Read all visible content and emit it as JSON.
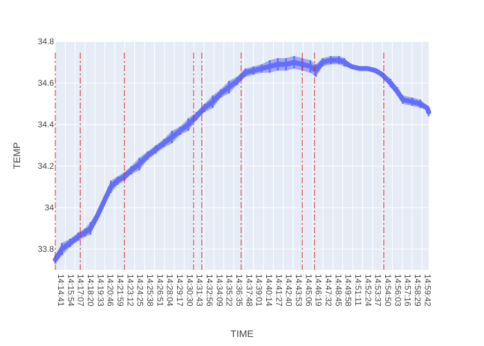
{
  "chart_data": {
    "type": "line",
    "title": "",
    "xlabel": "TIME",
    "ylabel": "TEMP",
    "ylim": [
      33.7,
      34.8
    ],
    "yticks": [
      {
        "value": 33.8,
        "label": "33.8"
      },
      {
        "value": 34.0,
        "label": "34"
      },
      {
        "value": 34.2,
        "label": "34.2"
      },
      {
        "value": 34.4,
        "label": "34.4"
      },
      {
        "value": 34.6,
        "label": "34.6"
      },
      {
        "value": 34.8,
        "label": "34.8"
      }
    ],
    "xlim": [
      "14:14:41",
      "15:00:31"
    ],
    "xticks": [
      "14:14:41",
      "14:15:54",
      "14:17:07",
      "14:18:20",
      "14:19:33",
      "14:20:46",
      "14:21:59",
      "14:23:12",
      "14:24:25",
      "14:25:38",
      "14:26:51",
      "14:28:04",
      "14:29:17",
      "14:30:30",
      "14:31:43",
      "14:32:56",
      "14:34:09",
      "14:35:22",
      "14:36:35",
      "14:37:48",
      "14:39:01",
      "14:40:14",
      "14:41:27",
      "14:42:40",
      "14:43:53",
      "14:45:06",
      "14:46:19",
      "14:47:32",
      "14:48:45",
      "14:49:58",
      "14:51:11",
      "14:52:24",
      "14:53:37",
      "14:54:50",
      "14:56:03",
      "14:57:16",
      "14:58:29",
      "14:59:42"
    ],
    "grid": true,
    "series": [
      {
        "name": "",
        "color": "#636efa",
        "x": [
          "14:14:41",
          "14:15:30",
          "14:16:30",
          "14:17:30",
          "14:18:20",
          "14:19:00",
          "14:19:50",
          "14:20:40",
          "14:21:30",
          "14:22:20",
          "14:23:10",
          "14:24:00",
          "14:25:00",
          "14:26:00",
          "14:27:00",
          "14:28:00",
          "14:29:00",
          "14:30:00",
          "14:31:00",
          "14:32:00",
          "14:33:00",
          "14:34:00",
          "14:35:00",
          "14:36:00",
          "14:37:00",
          "14:38:00",
          "14:39:00",
          "14:40:00",
          "14:41:00",
          "14:42:00",
          "14:43:00",
          "14:44:00",
          "14:45:00",
          "14:46:00",
          "14:46:40",
          "14:47:30",
          "14:48:30",
          "14:49:30",
          "14:50:10",
          "14:51:00",
          "14:52:00",
          "14:53:00",
          "14:54:00",
          "14:54:50",
          "14:55:50",
          "14:56:40",
          "14:57:20",
          "14:58:30",
          "14:59:30",
          "15:00:20",
          "15:00:31"
        ],
        "y": [
          33.75,
          33.8,
          33.83,
          33.86,
          33.88,
          33.9,
          33.96,
          34.03,
          34.1,
          34.13,
          34.15,
          34.18,
          34.21,
          34.25,
          34.28,
          34.31,
          34.34,
          34.37,
          34.4,
          34.44,
          34.48,
          34.51,
          34.55,
          34.58,
          34.61,
          34.65,
          34.66,
          34.67,
          34.68,
          34.69,
          34.69,
          34.7,
          34.69,
          34.68,
          34.66,
          34.7,
          34.71,
          34.71,
          34.7,
          34.68,
          34.67,
          34.67,
          34.66,
          34.64,
          34.6,
          34.56,
          34.52,
          34.51,
          34.5,
          34.48,
          34.46
        ],
        "band": [
          0.02,
          0.03,
          0.02,
          0.02,
          0.02,
          0.03,
          0.02,
          0.02,
          0.03,
          0.02,
          0.02,
          0.02,
          0.03,
          0.02,
          0.02,
          0.02,
          0.03,
          0.02,
          0.03,
          0.02,
          0.02,
          0.03,
          0.02,
          0.03,
          0.02,
          0.02,
          0.02,
          0.02,
          0.03,
          0.03,
          0.03,
          0.03,
          0.03,
          0.03,
          0.03,
          0.02,
          0.02,
          0.02,
          0.02,
          0.01,
          0.01,
          0.01,
          0.01,
          0.01,
          0.02,
          0.02,
          0.02,
          0.02,
          0.02,
          0.01,
          0.02
        ]
      }
    ],
    "vlines": {
      "color": "#d62728",
      "dash": "dashdot",
      "x": [
        "14:14:41",
        "14:17:45",
        "14:23:10",
        "14:31:40",
        "14:32:40",
        "14:37:30",
        "14:45:00",
        "14:46:30",
        "14:55:00"
      ]
    }
  }
}
